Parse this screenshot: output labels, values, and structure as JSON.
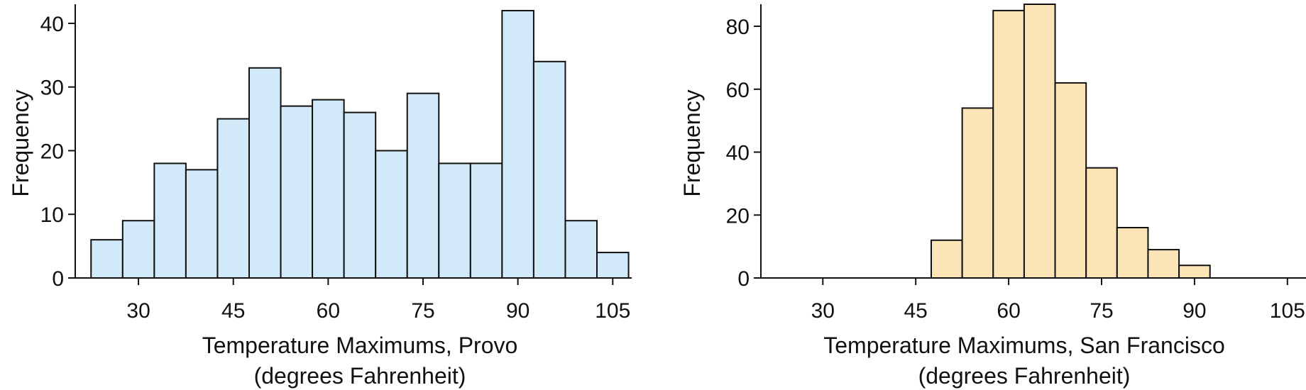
{
  "chart_data": [
    {
      "type": "bar",
      "chart_kind": "histogram",
      "title": "",
      "xlabel": "Temperature Maximums, Provo",
      "xlabel_line2": "(degrees Fahrenheit)",
      "ylabel": "Frequency",
      "bin_width": 5,
      "bins": [
        {
          "start": 22.5,
          "end": 27.5,
          "value": 6
        },
        {
          "start": 27.5,
          "end": 32.5,
          "value": 9
        },
        {
          "start": 32.5,
          "end": 37.5,
          "value": 18
        },
        {
          "start": 37.5,
          "end": 42.5,
          "value": 17
        },
        {
          "start": 42.5,
          "end": 47.5,
          "value": 25
        },
        {
          "start": 47.5,
          "end": 52.5,
          "value": 33
        },
        {
          "start": 52.5,
          "end": 57.5,
          "value": 27
        },
        {
          "start": 57.5,
          "end": 62.5,
          "value": 28
        },
        {
          "start": 62.5,
          "end": 67.5,
          "value": 26
        },
        {
          "start": 67.5,
          "end": 72.5,
          "value": 20
        },
        {
          "start": 72.5,
          "end": 77.5,
          "value": 29
        },
        {
          "start": 77.5,
          "end": 82.5,
          "value": 18
        },
        {
          "start": 82.5,
          "end": 87.5,
          "value": 18
        },
        {
          "start": 87.5,
          "end": 92.5,
          "value": 42
        },
        {
          "start": 92.5,
          "end": 97.5,
          "value": 34
        },
        {
          "start": 97.5,
          "end": 102.5,
          "value": 9
        },
        {
          "start": 102.5,
          "end": 107.5,
          "value": 4
        }
      ],
      "xlim": [
        20,
        108
      ],
      "ylim": [
        0,
        43
      ],
      "xticks": [
        30,
        45,
        60,
        75,
        90,
        105
      ],
      "yticks": [
        0,
        10,
        20,
        30,
        40
      ],
      "grid": false,
      "bar_color": "#d1e9f8",
      "edge_color": "#111111"
    },
    {
      "type": "bar",
      "chart_kind": "histogram",
      "title": "",
      "xlabel": "Temperature Maximums, San Francisco",
      "xlabel_line2": "(degrees Fahrenheit)",
      "ylabel": "Frequency",
      "bin_width": 5,
      "bins": [
        {
          "start": 47.5,
          "end": 52.5,
          "value": 12
        },
        {
          "start": 52.5,
          "end": 57.5,
          "value": 54
        },
        {
          "start": 57.5,
          "end": 62.5,
          "value": 85
        },
        {
          "start": 62.5,
          "end": 67.5,
          "value": 87
        },
        {
          "start": 67.5,
          "end": 72.5,
          "value": 62
        },
        {
          "start": 72.5,
          "end": 77.5,
          "value": 35
        },
        {
          "start": 77.5,
          "end": 82.5,
          "value": 16
        },
        {
          "start": 82.5,
          "end": 87.5,
          "value": 9
        },
        {
          "start": 87.5,
          "end": 92.5,
          "value": 4
        }
      ],
      "xlim": [
        20,
        108
      ],
      "ylim": [
        0,
        87
      ],
      "xticks": [
        30,
        45,
        60,
        75,
        90,
        105
      ],
      "yticks": [
        0,
        20,
        40,
        60,
        80
      ],
      "grid": false,
      "bar_color": "#fbe4b6",
      "edge_color": "#111111"
    }
  ]
}
